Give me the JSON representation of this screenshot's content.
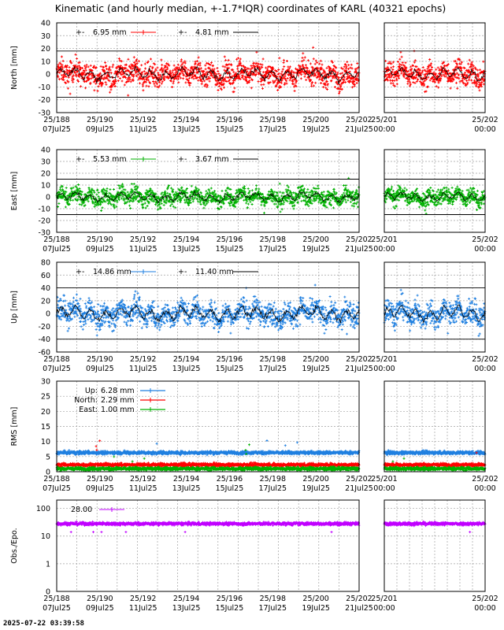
{
  "title": "Kinematic (and hourly median, +-1.7*IQR) coordinates of KARL (40321 epochs)",
  "timestamp": "2025-07-22 03:39:58",
  "colors": {
    "north": "#ff0000",
    "east": "#00b000",
    "up": "#1e7fe0",
    "obs": "#c000ff",
    "median": "#000000"
  },
  "chart_data": [
    {
      "id": "north",
      "type": "scatter",
      "ylabel": "North [mm]",
      "ylim": [
        -30,
        40
      ],
      "yticks": [
        -30,
        -20,
        -10,
        0,
        10,
        20,
        30,
        40
      ],
      "iqr_band": [
        -18,
        18
      ],
      "legend": [
        {
          "label": "6.95 mm",
          "kind": "points"
        },
        {
          "label": "4.81 mm",
          "kind": "median"
        }
      ],
      "main_xticks": [
        [
          "25/188",
          "07Jul25"
        ],
        [
          "25/190",
          "09Jul25"
        ],
        [
          "25/192",
          "11Jul25"
        ],
        [
          "25/194",
          "13Jul25"
        ],
        [
          "25/196",
          "15Jul25"
        ],
        [
          "25/198",
          "17Jul25"
        ],
        [
          "25/200",
          "19Jul25"
        ],
        [
          "25/202",
          "21Jul25"
        ]
      ],
      "zoom_xticks": [
        [
          "25/201",
          "00:00"
        ],
        [
          "25/202",
          "00:00"
        ]
      ],
      "series": [
        {
          "name": "North",
          "color": "north",
          "spread": 7,
          "median_amp": 3
        }
      ]
    },
    {
      "id": "east",
      "type": "scatter",
      "ylabel": "East [mm]",
      "ylim": [
        -30,
        40
      ],
      "yticks": [
        -30,
        -20,
        -10,
        0,
        10,
        20,
        30,
        40
      ],
      "iqr_band": [
        -15,
        15
      ],
      "legend": [
        {
          "label": "5.53 mm",
          "kind": "points"
        },
        {
          "label": "3.67 mm",
          "kind": "median"
        }
      ],
      "main_xticks": [
        [
          "25/188",
          "07Jul25"
        ],
        [
          "25/190",
          "09Jul25"
        ],
        [
          "25/192",
          "11Jul25"
        ],
        [
          "25/194",
          "13Jul25"
        ],
        [
          "25/196",
          "15Jul25"
        ],
        [
          "25/198",
          "17Jul25"
        ],
        [
          "25/200",
          "19Jul25"
        ],
        [
          "25/202",
          "21Jul25"
        ]
      ],
      "zoom_xticks": [
        [
          "25/201",
          "00:00"
        ],
        [
          "25/202",
          "00:00"
        ]
      ],
      "series": [
        {
          "name": "East",
          "color": "east",
          "spread": 5.5,
          "median_amp": 2.5
        }
      ]
    },
    {
      "id": "up",
      "type": "scatter",
      "ylabel": "Up [mm]",
      "ylim": [
        -60,
        80
      ],
      "yticks": [
        -60,
        -40,
        -20,
        0,
        20,
        40,
        60,
        80
      ],
      "iqr_band": [
        -40,
        40
      ],
      "legend": [
        {
          "label": "14.86 mm",
          "kind": "points"
        },
        {
          "label": "11.40 mm",
          "kind": "median"
        }
      ],
      "main_xticks": [
        [
          "25/188",
          "07Jul25"
        ],
        [
          "25/190",
          "09Jul25"
        ],
        [
          "25/192",
          "11Jul25"
        ],
        [
          "25/194",
          "13Jul25"
        ],
        [
          "25/196",
          "15Jul25"
        ],
        [
          "25/198",
          "17Jul25"
        ],
        [
          "25/200",
          "19Jul25"
        ],
        [
          "25/202",
          "21Jul25"
        ]
      ],
      "zoom_xticks": [
        [
          "25/201",
          "00:00"
        ],
        [
          "25/202",
          "00:00"
        ]
      ],
      "series": [
        {
          "name": "Up",
          "color": "up",
          "spread": 14,
          "median_amp": 7
        }
      ]
    },
    {
      "id": "rms",
      "type": "scatter",
      "ylabel": "RMS [mm]",
      "ylim": [
        0,
        30
      ],
      "yticks": [
        0,
        5,
        10,
        15,
        20,
        25,
        30
      ],
      "legend": [
        {
          "label": "Up:",
          "value": "6.28 mm",
          "color": "up"
        },
        {
          "label": "North:",
          "value": "2.29 mm",
          "color": "north"
        },
        {
          "label": "East:",
          "value": "1.00 mm",
          "color": "east"
        }
      ],
      "main_xticks": [
        [
          "25/188",
          "07Jul25"
        ],
        [
          "25/190",
          "09Jul25"
        ],
        [
          "25/192",
          "11Jul25"
        ],
        [
          "25/194",
          "13Jul25"
        ],
        [
          "25/196",
          "15Jul25"
        ],
        [
          "25/198",
          "17Jul25"
        ],
        [
          "25/200",
          "19Jul25"
        ],
        [
          "25/202",
          "21Jul25"
        ]
      ],
      "zoom_xticks": [
        [
          "25/201",
          "00:00"
        ],
        [
          "25/202",
          "00:00"
        ]
      ],
      "series": [
        {
          "name": "Up",
          "color": "up",
          "level": 6.3
        },
        {
          "name": "North",
          "color": "north",
          "level": 2.3
        },
        {
          "name": "East",
          "color": "east",
          "level": 1.0
        }
      ]
    },
    {
      "id": "obs",
      "type": "scatter",
      "ylabel": "Obs./Epo.",
      "yscale": "log",
      "ylim": [
        0.1,
        200
      ],
      "yticks": [
        {
          "v": 0.1,
          "label": "0"
        },
        {
          "v": 1,
          "label": "1"
        },
        {
          "v": 10,
          "label": "10"
        },
        {
          "v": 100,
          "label": "100"
        }
      ],
      "legend": [
        {
          "label": "28.00",
          "kind": "points"
        }
      ],
      "main_xticks": [
        [
          "25/188",
          "07Jul25"
        ],
        [
          "25/190",
          "09Jul25"
        ],
        [
          "25/192",
          "11Jul25"
        ],
        [
          "25/194",
          "13Jul25"
        ],
        [
          "25/196",
          "15Jul25"
        ],
        [
          "25/198",
          "17Jul25"
        ],
        [
          "25/200",
          "19Jul25"
        ],
        [
          "25/202",
          "21Jul25"
        ]
      ],
      "zoom_xticks": [
        [
          "25/201",
          "00:00"
        ],
        [
          "25/202",
          "00:00"
        ]
      ],
      "series": [
        {
          "name": "Obs",
          "color": "obs",
          "level": 28
        }
      ]
    }
  ]
}
